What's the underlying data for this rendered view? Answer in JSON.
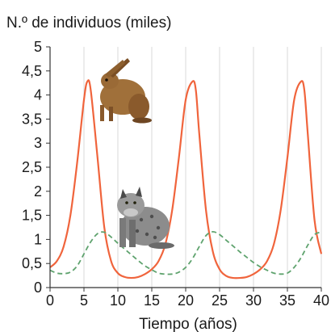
{
  "chart_data": {
    "type": "line",
    "ylabel": "N.º de individuos (miles)",
    "xlabel": "Tiempo (años)",
    "xlim": [
      0,
      40
    ],
    "ylim": [
      0,
      5
    ],
    "xticks": [
      0,
      5,
      10,
      15,
      20,
      25,
      30,
      35,
      40
    ],
    "yticks": [
      0,
      0.5,
      1,
      1.5,
      2,
      2.5,
      3,
      3.5,
      4,
      4.5,
      5
    ],
    "xtick_labels": [
      "0",
      "5",
      "10",
      "15",
      "20",
      "25",
      "30",
      "35",
      "40"
    ],
    "ytick_labels": [
      "0",
      "0,5",
      "1",
      "1,5",
      "2",
      "2,5",
      "3",
      "3,5",
      "4",
      "4,5",
      "5"
    ],
    "grid": "vertical",
    "colors": {
      "hare": "#f0643c",
      "lynx": "#5fa36e",
      "grid": "#cfcfcf",
      "axis": "#333333"
    },
    "illustrations": [
      "hare-icon",
      "lynx-icon"
    ],
    "series": [
      {
        "style": "solid",
        "color": "#f0643c",
        "x": [
          0,
          1,
          2,
          3,
          4,
          5,
          5.5,
          6,
          7,
          8,
          9,
          10,
          11,
          12,
          13,
          14,
          15,
          16,
          17,
          18,
          19,
          20,
          21,
          21.5,
          22,
          23,
          24,
          25,
          26,
          27,
          28,
          29,
          30,
          31,
          32,
          33,
          34,
          35,
          36,
          37,
          37.5,
          38,
          39,
          40
        ],
        "y": [
          0.42,
          0.55,
          0.85,
          1.5,
          2.6,
          3.9,
          4.28,
          4.1,
          2.7,
          1.25,
          0.55,
          0.3,
          0.22,
          0.2,
          0.22,
          0.28,
          0.38,
          0.55,
          0.9,
          1.6,
          2.7,
          3.9,
          4.28,
          4.1,
          3.2,
          1.6,
          0.75,
          0.38,
          0.24,
          0.2,
          0.2,
          0.22,
          0.28,
          0.38,
          0.55,
          0.9,
          1.6,
          2.7,
          3.9,
          4.28,
          4.1,
          3.2,
          1.4,
          0.7
        ]
      },
      {
        "style": "dashed",
        "color": "#5fa36e",
        "x": [
          0,
          1,
          2,
          3,
          4,
          5,
          6,
          7,
          8,
          9,
          10,
          11,
          12,
          13,
          14,
          15,
          16,
          17,
          18,
          19,
          20,
          21,
          22,
          23,
          24,
          25,
          26,
          27,
          28,
          29,
          30,
          31,
          32,
          33,
          34,
          35,
          36,
          37,
          38,
          39,
          40
        ],
        "y": [
          0.36,
          0.3,
          0.29,
          0.32,
          0.45,
          0.7,
          0.95,
          1.12,
          1.15,
          1.05,
          0.92,
          0.8,
          0.68,
          0.56,
          0.45,
          0.37,
          0.3,
          0.28,
          0.28,
          0.32,
          0.42,
          0.6,
          0.85,
          1.08,
          1.16,
          1.1,
          0.98,
          0.86,
          0.74,
          0.63,
          0.52,
          0.43,
          0.36,
          0.3,
          0.28,
          0.3,
          0.42,
          0.62,
          0.88,
          1.1,
          1.15
        ]
      }
    ]
  }
}
